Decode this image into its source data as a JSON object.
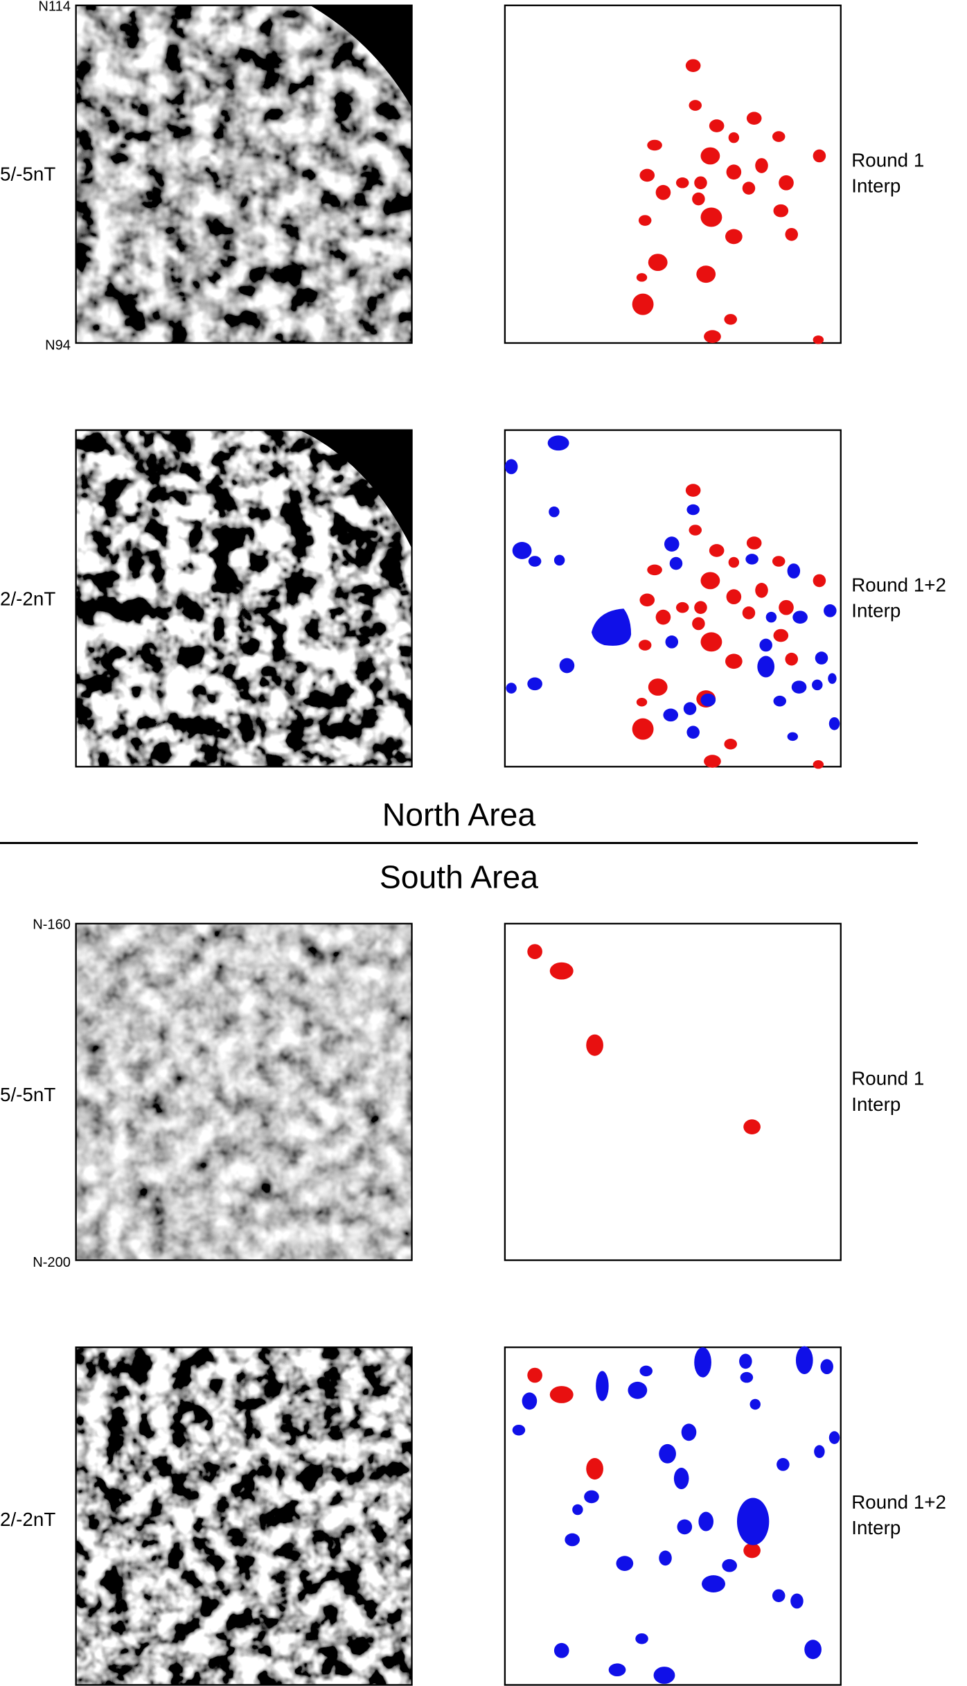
{
  "north": {
    "title": "North Area",
    "rows": [
      {
        "range_top": "N114",
        "range_bottom": "N94",
        "scale": "5/-5nT",
        "interp": [
          "Round 1",
          "Interp"
        ]
      },
      {
        "scale": "2/-2nT",
        "interp": [
          "Round 1+2",
          "Interp"
        ]
      }
    ]
  },
  "south": {
    "title": "South Area",
    "rows": [
      {
        "range_top": "N-160",
        "range_bottom": "N-200",
        "scale": "5/-5nT",
        "interp": [
          "Round 1",
          "Interp"
        ]
      },
      {
        "scale": "2/-2nT",
        "interp": [
          "Round 1+2",
          "Interp"
        ]
      }
    ]
  }
}
